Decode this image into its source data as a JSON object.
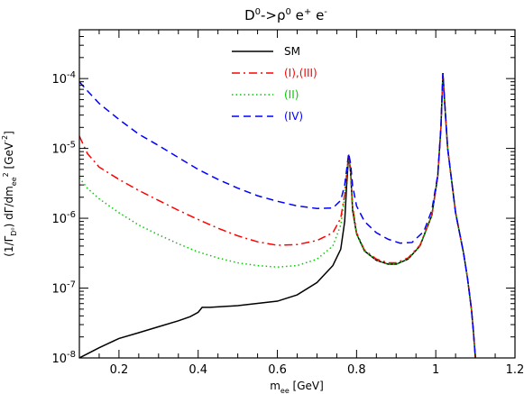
{
  "chart_data": {
    "type": "line",
    "title": "D0->ρ0 e+ e-",
    "xlabel": "mee [GeV]",
    "ylabel": "(1/ΓD0) dΓ/dmee2 [GeV-2]",
    "xlim": [
      0.1,
      1.2
    ],
    "ylim": [
      1e-08,
      0.0005
    ],
    "yscale": "log",
    "x_ticks": [
      0.2,
      0.4,
      0.6,
      0.8,
      1.0,
      1.2
    ],
    "x_tick_labels": [
      "0.2",
      "0.4",
      "0.6",
      "0.8",
      "1",
      "1.2"
    ],
    "y_ticks": [
      1e-08,
      1e-07,
      1e-06,
      1e-05,
      0.0001
    ],
    "y_tick_labels": [
      {
        "base": "10",
        "exp": "-8"
      },
      {
        "base": "10",
        "exp": "-7"
      },
      {
        "base": "10",
        "exp": "-6"
      },
      {
        "base": "10",
        "exp": "-5"
      },
      {
        "base": "10",
        "exp": "-4"
      }
    ],
    "legend_position": "top-center",
    "series": [
      {
        "name": "SM",
        "color": "#000000",
        "dash": "solid",
        "points": [
          [
            0.1,
            1e-08
          ],
          [
            0.15,
            1.4e-08
          ],
          [
            0.2,
            1.9e-08
          ],
          [
            0.25,
            2.3e-08
          ],
          [
            0.3,
            2.8e-08
          ],
          [
            0.35,
            3.4e-08
          ],
          [
            0.38,
            3.9e-08
          ],
          [
            0.4,
            4.5e-08
          ],
          [
            0.41,
            5.3e-08
          ],
          [
            0.43,
            5.3e-08
          ],
          [
            0.5,
            5.6e-08
          ],
          [
            0.6,
            6.5e-08
          ],
          [
            0.65,
            8e-08
          ],
          [
            0.7,
            1.2e-07
          ],
          [
            0.74,
            2.1e-07
          ],
          [
            0.76,
            3.6e-07
          ],
          [
            0.77,
            9e-07
          ],
          [
            0.775,
            3e-06
          ],
          [
            0.78,
            8e-06
          ],
          [
            0.785,
            4.5e-06
          ],
          [
            0.79,
            1.3e-06
          ],
          [
            0.8,
            6e-07
          ],
          [
            0.82,
            3.4e-07
          ],
          [
            0.85,
            2.5e-07
          ],
          [
            0.88,
            2.2e-07
          ],
          [
            0.9,
            2.2e-07
          ],
          [
            0.93,
            2.6e-07
          ],
          [
            0.96,
            4e-07
          ],
          [
            0.99,
            1.1e-06
          ],
          [
            1.005,
            4e-06
          ],
          [
            1.013,
            2e-05
          ],
          [
            1.018,
            0.00012
          ],
          [
            1.022,
            5e-05
          ],
          [
            1.03,
            1e-05
          ],
          [
            1.05,
            1.2e-06
          ],
          [
            1.07,
            3.2e-07
          ],
          [
            1.08,
            1.4e-07
          ],
          [
            1.09,
            5e-08
          ],
          [
            1.095,
            2.4e-08
          ],
          [
            1.1,
            1e-08
          ]
        ]
      },
      {
        "name": "(I),(III)",
        "color": "#ff0000",
        "dash": "dash-dot",
        "points": [
          [
            0.1,
            1.5e-05
          ],
          [
            0.12,
            8.5e-06
          ],
          [
            0.15,
            5.4e-06
          ],
          [
            0.2,
            3.6e-06
          ],
          [
            0.25,
            2.5e-06
          ],
          [
            0.3,
            1.8e-06
          ],
          [
            0.35,
            1.3e-06
          ],
          [
            0.4,
            9.6e-07
          ],
          [
            0.45,
            7.2e-07
          ],
          [
            0.5,
            5.6e-07
          ],
          [
            0.55,
            4.6e-07
          ],
          [
            0.6,
            4.1e-07
          ],
          [
            0.65,
            4.2e-07
          ],
          [
            0.7,
            4.8e-07
          ],
          [
            0.74,
            6.2e-07
          ],
          [
            0.76,
            1e-06
          ],
          [
            0.77,
            2.2e-06
          ],
          [
            0.775,
            4.4e-06
          ],
          [
            0.78,
            8.2e-06
          ],
          [
            0.785,
            4.8e-06
          ],
          [
            0.79,
            1.5e-06
          ],
          [
            0.8,
            6.2e-07
          ],
          [
            0.82,
            3.5e-07
          ],
          [
            0.85,
            2.6e-07
          ],
          [
            0.88,
            2.3e-07
          ],
          [
            0.9,
            2.3e-07
          ],
          [
            0.93,
            2.7e-07
          ],
          [
            0.96,
            4.1e-07
          ],
          [
            0.99,
            1.1e-06
          ],
          [
            1.005,
            4e-06
          ],
          [
            1.013,
            2e-05
          ],
          [
            1.018,
            0.00012
          ],
          [
            1.022,
            5e-05
          ],
          [
            1.03,
            1e-05
          ],
          [
            1.05,
            1.2e-06
          ],
          [
            1.07,
            3.2e-07
          ],
          [
            1.08,
            1.4e-07
          ],
          [
            1.09,
            5e-08
          ],
          [
            1.095,
            2.4e-08
          ],
          [
            1.1,
            1e-08
          ]
        ]
      },
      {
        "name": "(II)",
        "color": "#00cc00",
        "dash": "dotted",
        "points": [
          [
            0.1,
            3.8e-06
          ],
          [
            0.12,
            2.7e-06
          ],
          [
            0.15,
            1.9e-06
          ],
          [
            0.2,
            1.2e-06
          ],
          [
            0.25,
            8e-07
          ],
          [
            0.3,
            5.8e-07
          ],
          [
            0.35,
            4.3e-07
          ],
          [
            0.4,
            3.3e-07
          ],
          [
            0.45,
            2.7e-07
          ],
          [
            0.5,
            2.3e-07
          ],
          [
            0.55,
            2.1e-07
          ],
          [
            0.6,
            2e-07
          ],
          [
            0.65,
            2.1e-07
          ],
          [
            0.7,
            2.6e-07
          ],
          [
            0.74,
            4e-07
          ],
          [
            0.76,
            8e-07
          ],
          [
            0.77,
            2e-06
          ],
          [
            0.775,
            4.2e-06
          ],
          [
            0.78,
            8e-06
          ],
          [
            0.785,
            4.6e-06
          ],
          [
            0.79,
            1.4e-06
          ],
          [
            0.8,
            6e-07
          ],
          [
            0.82,
            3.4e-07
          ],
          [
            0.85,
            2.5e-07
          ],
          [
            0.88,
            2.2e-07
          ],
          [
            0.9,
            2.2e-07
          ],
          [
            0.93,
            2.6e-07
          ],
          [
            0.96,
            4e-07
          ],
          [
            0.99,
            1.1e-06
          ],
          [
            1.005,
            4e-06
          ],
          [
            1.013,
            2e-05
          ],
          [
            1.018,
            0.00012
          ],
          [
            1.022,
            5e-05
          ],
          [
            1.03,
            1e-05
          ],
          [
            1.05,
            1.2e-06
          ],
          [
            1.07,
            3.2e-07
          ],
          [
            1.08,
            1.4e-07
          ],
          [
            1.09,
            5e-08
          ],
          [
            1.095,
            2.4e-08
          ],
          [
            1.1,
            1e-08
          ]
        ]
      },
      {
        "name": "(IV)",
        "color": "#0000ff",
        "dash": "dashed",
        "points": [
          [
            0.1,
            9e-05
          ],
          [
            0.12,
            6.7e-05
          ],
          [
            0.15,
            4.4e-05
          ],
          [
            0.2,
            2.6e-05
          ],
          [
            0.25,
            1.6e-05
          ],
          [
            0.3,
            1.1e-05
          ],
          [
            0.35,
            7.4e-06
          ],
          [
            0.4,
            5e-06
          ],
          [
            0.45,
            3.6e-06
          ],
          [
            0.5,
            2.7e-06
          ],
          [
            0.55,
            2.1e-06
          ],
          [
            0.6,
            1.75e-06
          ],
          [
            0.65,
            1.5e-06
          ],
          [
            0.7,
            1.38e-06
          ],
          [
            0.74,
            1.4e-06
          ],
          [
            0.76,
            1.8e-06
          ],
          [
            0.77,
            3e-06
          ],
          [
            0.775,
            5e-06
          ],
          [
            0.78,
            8.5e-06
          ],
          [
            0.785,
            6e-06
          ],
          [
            0.79,
            2.9e-06
          ],
          [
            0.8,
            1.5e-06
          ],
          [
            0.82,
            9e-07
          ],
          [
            0.85,
            6.2e-07
          ],
          [
            0.88,
            5e-07
          ],
          [
            0.91,
            4.4e-07
          ],
          [
            0.94,
            4.5e-07
          ],
          [
            0.97,
            6.5e-07
          ],
          [
            0.99,
            1.3e-06
          ],
          [
            1.005,
            4.2e-06
          ],
          [
            1.013,
            2e-05
          ],
          [
            1.018,
            0.00012
          ],
          [
            1.022,
            5e-05
          ],
          [
            1.03,
            1e-05
          ],
          [
            1.05,
            1.2e-06
          ],
          [
            1.07,
            3.2e-07
          ],
          [
            1.08,
            1.4e-07
          ],
          [
            1.09,
            5e-08
          ],
          [
            1.095,
            2.4e-08
          ],
          [
            1.1,
            1e-08
          ]
        ]
      }
    ]
  }
}
